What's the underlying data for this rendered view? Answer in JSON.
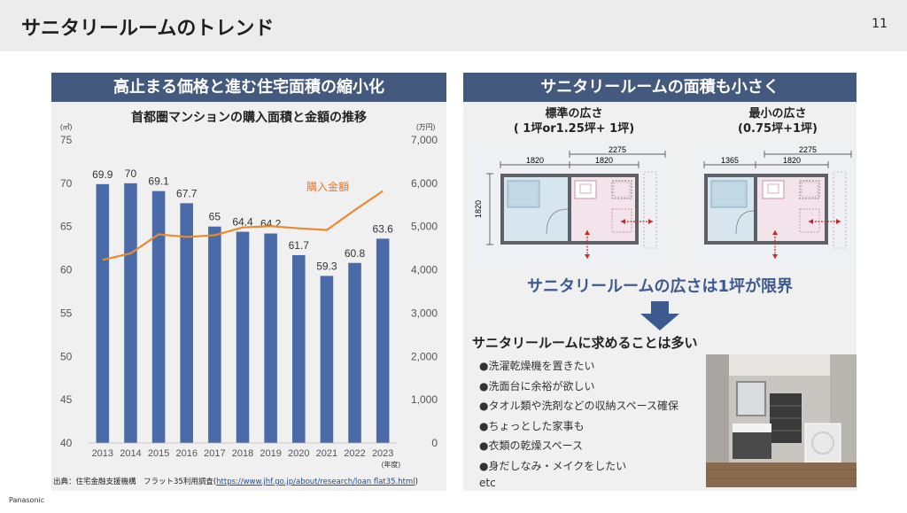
{
  "header": {
    "title": "サニタリールームのトレンド",
    "page_number": "11"
  },
  "left_panel": {
    "banner": "高止まる価格と進む住宅面積の縮小化",
    "chart_title": "首都圏マンションの購入面積と金額の推移",
    "source_prefix": "出典：住宅金融支援機構　フラット35利用調査(",
    "source_link": "https://www.jhf.go.jp/about/research/loan flat35.html",
    "source_suffix": ")"
  },
  "chart_data": {
    "type": "bar",
    "title": "首都圏マンションの購入面積と金額の推移",
    "categories": [
      "2013",
      "2014",
      "2015",
      "2016",
      "2017",
      "2018",
      "2019",
      "2020",
      "2021",
      "2022",
      "2023"
    ],
    "x_unit": "(年度)",
    "series": [
      {
        "values": [
          69.9,
          70,
          69.1,
          67.7,
          65,
          64.4,
          64.2,
          61.7,
          59.3,
          60.8,
          63.6
        ],
        "axis": "left",
        "kind": "bar",
        "color": "#4a6ba8"
      },
      {
        "name": "購入金額",
        "values": [
          4230,
          4380,
          4820,
          4760,
          4800,
          4980,
          5010,
          4960,
          4920,
          5380,
          5820
        ],
        "axis": "right",
        "kind": "line",
        "color": "#ea8a2f"
      }
    ],
    "y_left": {
      "unit": "(㎡)",
      "range": [
        40,
        75
      ],
      "ticks": [
        "40",
        "45",
        "50",
        "55",
        "60",
        "65",
        "70",
        "75"
      ]
    },
    "y_right": {
      "unit": "(万円)",
      "range": [
        0,
        7000
      ],
      "ticks": [
        "0",
        "1,000",
        "2,000",
        "3,000",
        "4,000",
        "5,000",
        "6,000",
        "7,000"
      ]
    },
    "grid": false
  },
  "right_panel": {
    "banner": "サニタリールームの面積も小さく",
    "standard_label_1": "標準の広さ",
    "standard_label_2": "( 1坪or1.25坪+ 1坪)",
    "minimum_label_1": "最小の広さ",
    "minimum_label_2": "(0.75坪+1坪)",
    "plan_standard": {
      "d_total": "2275",
      "d_left": "1820",
      "d_right": "1820",
      "d_side": "1820"
    },
    "plan_minimum": {
      "d_total": "2275",
      "d_left": "1365",
      "d_right": "1820"
    },
    "emphasis": "サニタリールームの広さは1坪が限界",
    "needs_title": "サニタリールームに求めることは多い",
    "needs": [
      "●洗濯乾燥機を置きたい",
      "●洗面台に余裕が欲しい",
      "●タオル類や洗剤などの収納スペース確保",
      "●ちょっとした家事も",
      "●衣類の乾燥スペース",
      "●身だしなみ・メイクをしたい"
    ],
    "etc": "etc"
  },
  "footer": {
    "brand": "Panasonic"
  }
}
